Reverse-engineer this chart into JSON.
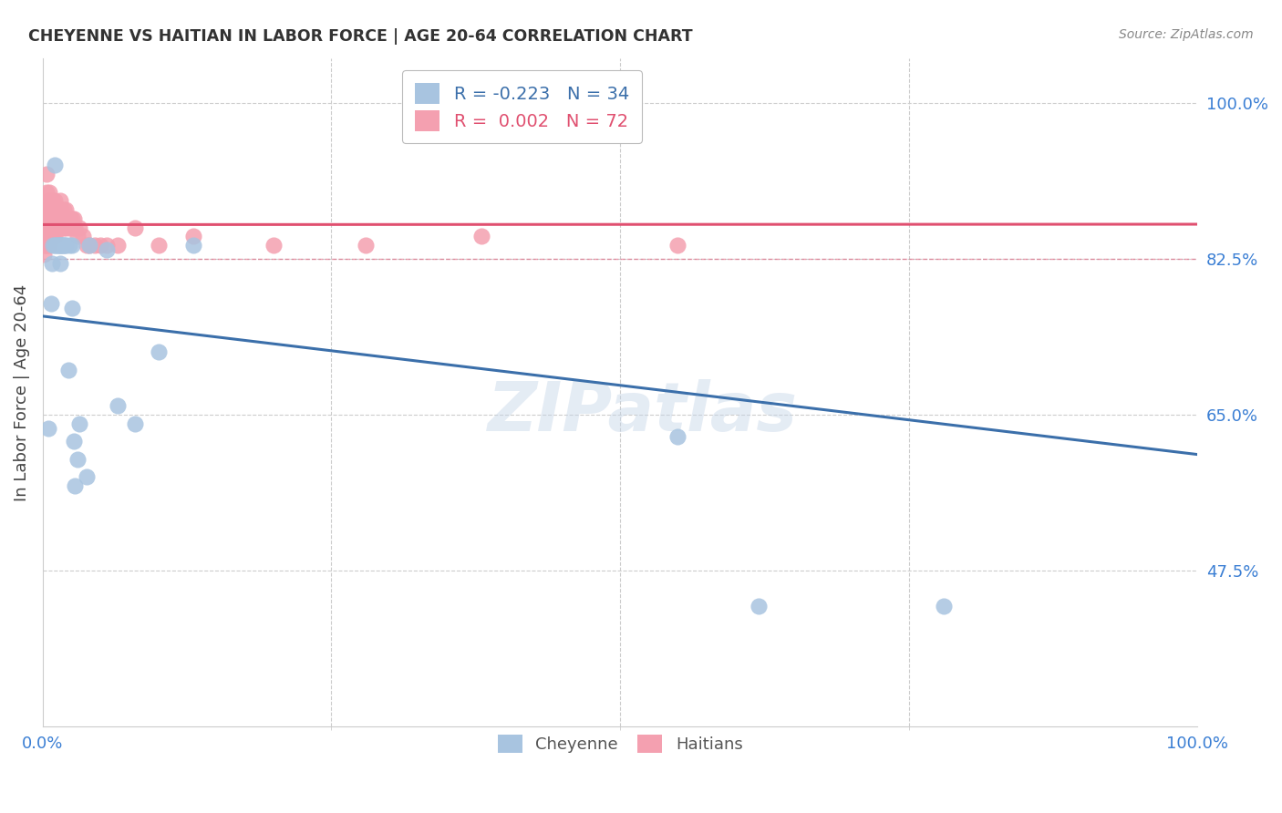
{
  "title": "CHEYENNE VS HAITIAN IN LABOR FORCE | AGE 20-64 CORRELATION CHART",
  "source": "Source: ZipAtlas.com",
  "ylabel": "In Labor Force | Age 20-64",
  "xlim": [
    0.0,
    1.0
  ],
  "ylim": [
    0.3,
    1.05
  ],
  "yticks": [
    0.475,
    0.65,
    0.825,
    1.0
  ],
  "ytick_labels": [
    "47.5%",
    "65.0%",
    "82.5%",
    "100.0%"
  ],
  "xticks": [
    0.0,
    1.0
  ],
  "xtick_labels": [
    "0.0%",
    "100.0%"
  ],
  "cheyenne_R": -0.223,
  "cheyenne_N": 34,
  "haitian_R": 0.002,
  "haitian_N": 72,
  "cheyenne_color": "#a8c4e0",
  "haitian_color": "#f4a0b0",
  "cheyenne_line_color": "#3b6faa",
  "haitian_line_color": "#e05070",
  "watermark": "ZIPatlas",
  "cheyenne_x": [
    0.005,
    0.007,
    0.008,
    0.009,
    0.01,
    0.01,
    0.012,
    0.013,
    0.014,
    0.015,
    0.015,
    0.016,
    0.017,
    0.018,
    0.019,
    0.02,
    0.022,
    0.023,
    0.025,
    0.025,
    0.027,
    0.028,
    0.03,
    0.032,
    0.038,
    0.04,
    0.055,
    0.065,
    0.08,
    0.1,
    0.13,
    0.55,
    0.62,
    0.78
  ],
  "cheyenne_y": [
    0.635,
    0.775,
    0.82,
    0.84,
    0.84,
    0.93,
    0.84,
    0.84,
    0.84,
    0.84,
    0.82,
    0.84,
    0.84,
    0.84,
    0.84,
    0.84,
    0.7,
    0.84,
    0.84,
    0.77,
    0.62,
    0.57,
    0.6,
    0.64,
    0.58,
    0.84,
    0.835,
    0.66,
    0.64,
    0.72,
    0.84,
    0.625,
    0.435,
    0.435
  ],
  "haitian_x": [
    0.001,
    0.001,
    0.002,
    0.002,
    0.002,
    0.003,
    0.003,
    0.003,
    0.003,
    0.004,
    0.004,
    0.004,
    0.005,
    0.005,
    0.005,
    0.006,
    0.006,
    0.006,
    0.006,
    0.007,
    0.007,
    0.007,
    0.008,
    0.008,
    0.008,
    0.009,
    0.009,
    0.009,
    0.01,
    0.01,
    0.01,
    0.011,
    0.011,
    0.012,
    0.012,
    0.013,
    0.013,
    0.014,
    0.015,
    0.015,
    0.016,
    0.016,
    0.017,
    0.018,
    0.018,
    0.019,
    0.02,
    0.02,
    0.021,
    0.022,
    0.023,
    0.024,
    0.025,
    0.026,
    0.027,
    0.028,
    0.03,
    0.032,
    0.035,
    0.038,
    0.04,
    0.045,
    0.05,
    0.055,
    0.065,
    0.08,
    0.1,
    0.13,
    0.2,
    0.28,
    0.38,
    0.55
  ],
  "haitian_y": [
    0.84,
    0.83,
    0.88,
    0.86,
    0.84,
    0.92,
    0.9,
    0.87,
    0.85,
    0.88,
    0.86,
    0.84,
    0.89,
    0.87,
    0.85,
    0.9,
    0.88,
    0.86,
    0.84,
    0.89,
    0.87,
    0.85,
    0.89,
    0.87,
    0.85,
    0.89,
    0.87,
    0.85,
    0.89,
    0.87,
    0.85,
    0.88,
    0.86,
    0.88,
    0.86,
    0.88,
    0.86,
    0.87,
    0.89,
    0.87,
    0.88,
    0.86,
    0.87,
    0.88,
    0.86,
    0.87,
    0.88,
    0.86,
    0.87,
    0.87,
    0.86,
    0.87,
    0.87,
    0.86,
    0.87,
    0.86,
    0.85,
    0.86,
    0.85,
    0.84,
    0.84,
    0.84,
    0.84,
    0.84,
    0.84,
    0.86,
    0.84,
    0.85,
    0.84,
    0.84,
    0.85,
    0.84
  ]
}
